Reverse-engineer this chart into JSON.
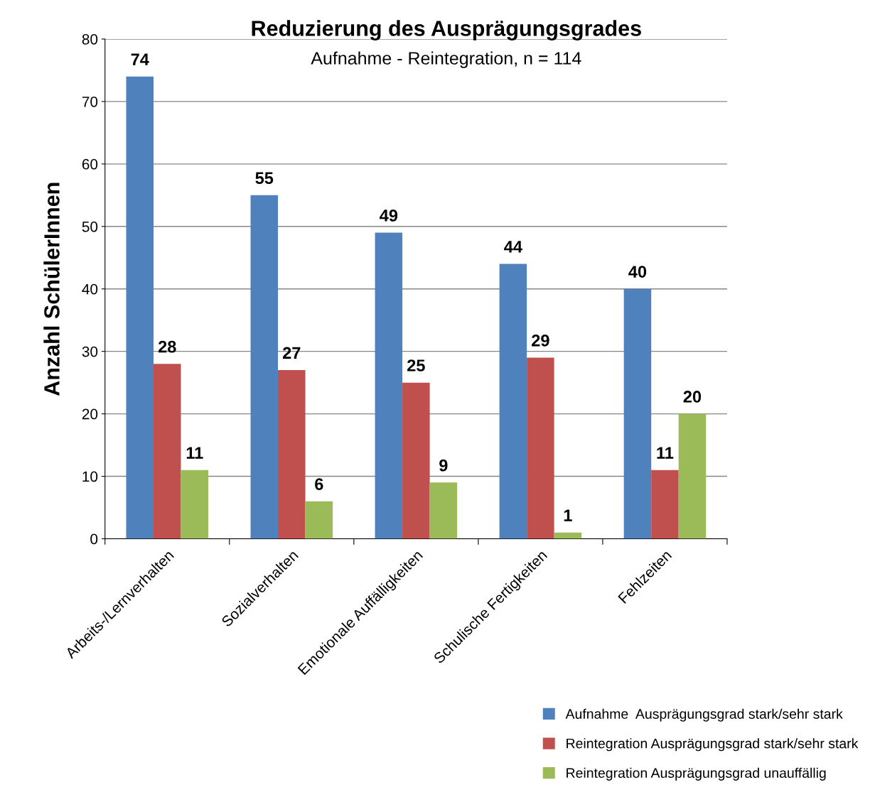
{
  "chart_data": {
    "type": "bar",
    "title": "Reduzierung des Ausprägungsgrades",
    "subtitle": "Aufnahme - Reintegration, n = 114",
    "ylabel": "Anzahl SchülerInnen",
    "categories": [
      "Arbeits-/Lernverhalten",
      "Sozialverhalten",
      "Emotionale Auffälligkeiten",
      "Schulische Fertigkeiten",
      "Fehlzeiten"
    ],
    "series": [
      {
        "name": "Aufnahme  Ausprägungsgrad stark/sehr stark",
        "color": "#4f81bd",
        "values": [
          74,
          55,
          49,
          44,
          40
        ]
      },
      {
        "name": "Reintegration Ausprägungsgrad stark/sehr stark",
        "color": "#c0504d",
        "values": [
          28,
          27,
          25,
          29,
          11
        ]
      },
      {
        "name": "Reintegration Ausprägungsgrad unauffällig",
        "color": "#9bbb59",
        "values": [
          11,
          6,
          9,
          1,
          20
        ]
      }
    ],
    "ylim": [
      0,
      80
    ],
    "yticks": [
      0,
      10,
      20,
      30,
      40,
      50,
      60,
      70,
      80
    ],
    "grid": "y",
    "legend": "bottom right",
    "data_labels": true
  }
}
